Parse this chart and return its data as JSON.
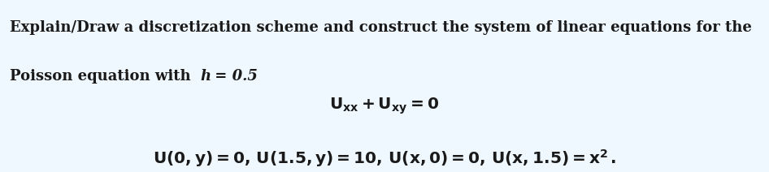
{
  "background_color": "#f0f8ff",
  "text_color": "#1a1a1a",
  "line1": "Explain/Draw a discretization scheme and construct the system of linear equations for the",
  "line2_pre": "Poisson equation with ",
  "line2_h": "h",
  "line2_post": " = 0.5",
  "eq1": "$\\mathbf{U_{xx} + U_{xy} = 0}$",
  "eq2": "$\\mathbf{U(0, y) = 0,\\, U(1.5, y) = 10,\\, U(x, 0) = 0,\\, U(x, 1.5) = x^2\\,.}$",
  "fontsize_body": 13.0,
  "fontsize_eq": 14.5,
  "figwidth": 9.46,
  "figheight": 2.12,
  "dpi": 100
}
